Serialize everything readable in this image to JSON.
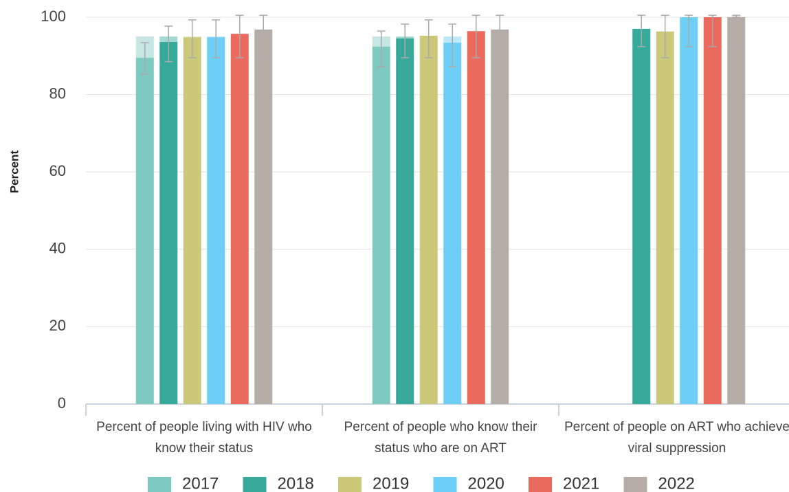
{
  "chart_data": {
    "type": "bar",
    "y_label": "Percent",
    "categories": [
      "Percent of people living with HIV who know their status",
      "Percent of people who know their status who are on ART",
      "Percent of people on ART who achieve viral suppression"
    ],
    "ylim": [
      0,
      100
    ],
    "yticks": [
      0,
      20,
      40,
      60,
      80,
      100
    ],
    "grid": true,
    "target": 95,
    "legend": "bottom",
    "series": [
      {
        "name": "2017",
        "color": "#7fcac0",
        "values": [
          89.5,
          92.4,
          null
        ],
        "lower": [
          85.3,
          87.2,
          null
        ],
        "upper": [
          93.4,
          96.4,
          null
        ]
      },
      {
        "name": "2018",
        "color": "#36a99b",
        "values": [
          93.6,
          94.5,
          97.0
        ],
        "lower": [
          88.5,
          89.5,
          92.4
        ],
        "upper": [
          97.7,
          98.2,
          100.5
        ]
      },
      {
        "name": "2019",
        "color": "#ccc87a",
        "values": [
          94.8,
          95.2,
          96.3
        ],
        "lower": [
          89.5,
          89.5,
          89.5
        ],
        "upper": [
          99.3,
          99.3,
          100.5
        ]
      },
      {
        "name": "2020",
        "color": "#6dcff6",
        "values": [
          94.8,
          93.4,
          100
        ],
        "lower": [
          89.5,
          87.2,
          92.4
        ],
        "upper": [
          99.3,
          98.2,
          100.5
        ]
      },
      {
        "name": "2021",
        "color": "#ea6b5e",
        "values": [
          95.7,
          96.4,
          100
        ],
        "lower": [
          89.5,
          89.5,
          92.4
        ],
        "upper": [
          100.5,
          100.5,
          100.5
        ]
      },
      {
        "name": "2022",
        "color": "#b6aea6",
        "values": [
          96.8,
          96.8,
          100
        ],
        "lower": [
          96.6,
          96.6,
          100
        ],
        "upper": [
          100.5,
          100.5,
          100.5
        ]
      }
    ]
  }
}
